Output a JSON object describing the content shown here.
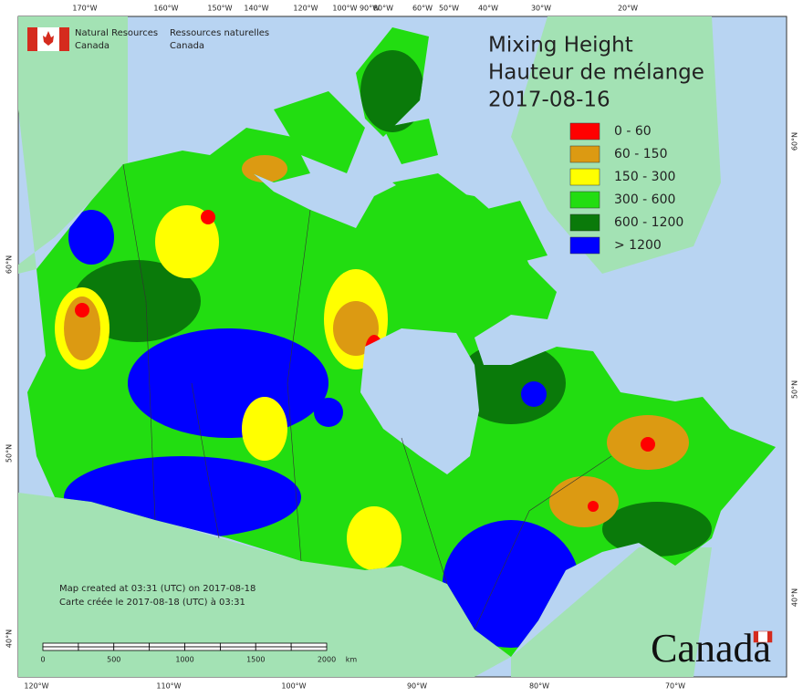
{
  "header": {
    "agency_en": "Natural Resources",
    "agency_en_2": "Canada",
    "agency_fr": "Ressources naturelles",
    "agency_fr_2": "Canada"
  },
  "title": {
    "line_1": "Mixing Height",
    "line_2": "Hauteur de mélange",
    "date": "2017-08-16"
  },
  "legend": [
    {
      "label": "0 - 60",
      "color": "#ff0000"
    },
    {
      "label": "60 - 150",
      "color": "#dc9a12"
    },
    {
      "label": "150 - 300",
      "color": "#ffff00"
    },
    {
      "label": "300 - 600",
      "color": "#22dd11"
    },
    {
      "label": "600 - 1200",
      "color": "#0a7a0a"
    },
    {
      "label": "> 1200",
      "color": "#0000ff"
    }
  ],
  "top_longitudes": [
    "170°W",
    "160°W",
    "150°W",
    "140°W",
    "120°W",
    "100°W",
    "90°W",
    "80°W",
    "60°W",
    "50°W",
    "40°W",
    "30°W",
    "20°W"
  ],
  "bottom_longitudes": [
    "120°W",
    "110°W",
    "100°W",
    "90°W",
    "80°W",
    "70°W"
  ],
  "left_latitudes": [
    "60°N",
    "50°N",
    "40°N"
  ],
  "right_latitudes": [
    "60°N",
    "50°N",
    "40°N"
  ],
  "footer": {
    "created_en": "Map created at 03:31 (UTC) on 2017-08-18",
    "created_fr": "Carte créée le 2017-08-18 (UTC) à 03:31"
  },
  "scale_bar": {
    "ticks": [
      "0",
      "500",
      "1000",
      "1500",
      "2000"
    ],
    "unit": "km"
  },
  "wordmark": "Canada"
}
